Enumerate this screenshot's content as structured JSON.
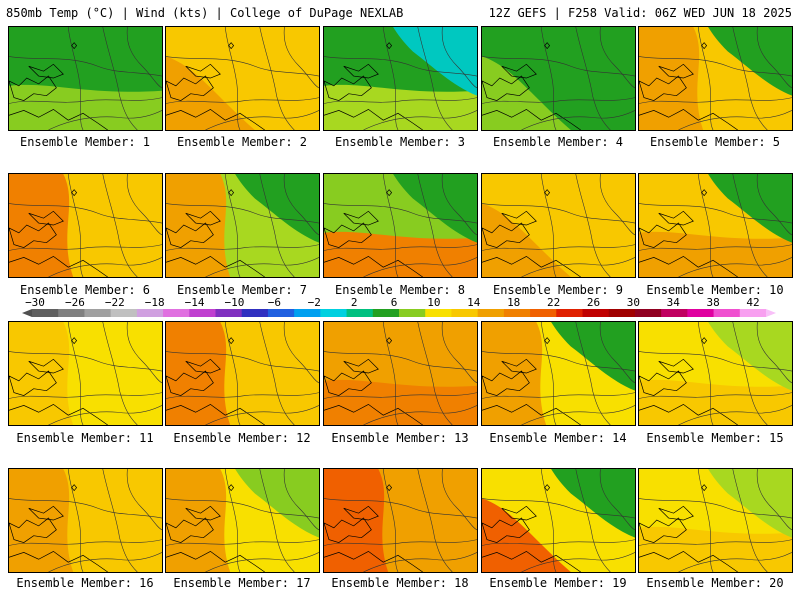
{
  "header": {
    "left": "850mb Temp (°C) | Wind (kts) | College of DuPage NEXLAB",
    "right": "12Z GEFS | F258 Valid: 06Z WED JUN 18 2025"
  },
  "members": [
    {
      "label": "Ensemble Member: 1",
      "base": "#22a020",
      "warm": "#88cc20",
      "warmside": "south"
    },
    {
      "label": "Ensemble Member: 2",
      "base": "#f8c800",
      "warm": "#f0a000",
      "warmside": "southwest"
    },
    {
      "label": "Ensemble Member: 3",
      "base": "#22a020",
      "warm": "#a8d820",
      "cool": "#00c8c0",
      "warmside": "south"
    },
    {
      "label": "Ensemble Member: 4",
      "base": "#22a020",
      "warm": "#88cc20",
      "warmside": "southwest"
    },
    {
      "label": "Ensemble Member: 5",
      "base": "#f8c800",
      "warm": "#f0a000",
      "cool": "#22a020",
      "warmside": "west"
    },
    {
      "label": "Ensemble Member: 6",
      "base": "#f8c800",
      "warm": "#f08000",
      "warmside": "west"
    },
    {
      "label": "Ensemble Member: 7",
      "base": "#a8d820",
      "warm": "#f0a000",
      "cool": "#22a020",
      "warmside": "west"
    },
    {
      "label": "Ensemble Member: 8",
      "base": "#88cc20",
      "warm": "#f08000",
      "cool": "#22a020",
      "warmside": "south"
    },
    {
      "label": "Ensemble Member: 9",
      "base": "#f8c800",
      "warm": "#f0a000",
      "warmside": "southwest"
    },
    {
      "label": "Ensemble Member: 10",
      "base": "#f8c800",
      "warm": "#f0a000",
      "cool": "#22a020",
      "warmside": "south"
    },
    {
      "label": "Ensemble Member: 11",
      "base": "#f8e000",
      "warm": "#f8c800",
      "warmside": "west"
    },
    {
      "label": "Ensemble Member: 12",
      "base": "#f8c800",
      "warm": "#f08000",
      "warmside": "west"
    },
    {
      "label": "Ensemble Member: 13",
      "base": "#f0a000",
      "warm": "#f08000",
      "warmside": "south"
    },
    {
      "label": "Ensemble Member: 14",
      "base": "#f8e000",
      "warm": "#f0a000",
      "cool": "#22a020",
      "warmside": "west"
    },
    {
      "label": "Ensemble Member: 15",
      "base": "#f8e000",
      "warm": "#f8c800",
      "cool": "#a8d820",
      "warmside": "south"
    },
    {
      "label": "Ensemble Member: 16",
      "base": "#f8c800",
      "warm": "#f0a000",
      "warmside": "west"
    },
    {
      "label": "Ensemble Member: 17",
      "base": "#f8e000",
      "warm": "#f0a000",
      "cool": "#88cc20",
      "warmside": "west"
    },
    {
      "label": "Ensemble Member: 18",
      "base": "#f0a000",
      "warm": "#f06000",
      "warmside": "west"
    },
    {
      "label": "Ensemble Member: 19",
      "base": "#f8e000",
      "warm": "#f06000",
      "cool": "#22a020",
      "warmside": "southwest"
    },
    {
      "label": "Ensemble Member: 20",
      "base": "#f8e000",
      "warm": "#f8c800",
      "cool": "#a8d820",
      "warmside": "south"
    }
  ],
  "colorbar": {
    "tick_labels": [
      "−30",
      "−26",
      "−22",
      "−18",
      "−14",
      "−10",
      "−6",
      "−2",
      "2",
      "6",
      "10",
      "14",
      "18",
      "22",
      "26",
      "30",
      "34",
      "38",
      "42"
    ],
    "colors": [
      "#606060",
      "#808080",
      "#a0a0a0",
      "#c0c0c0",
      "#d0a0e0",
      "#e070e0",
      "#c040d0",
      "#8030c0",
      "#3030c0",
      "#2060e0",
      "#00a0f0",
      "#00d0e0",
      "#00c080",
      "#22a020",
      "#88cc20",
      "#f8e000",
      "#f8c800",
      "#f0a000",
      "#f08000",
      "#f06000",
      "#e02000",
      "#c00000",
      "#a00000",
      "#900020",
      "#c00060",
      "#e000a0",
      "#f050d0",
      "#f8a0f0"
    ]
  }
}
